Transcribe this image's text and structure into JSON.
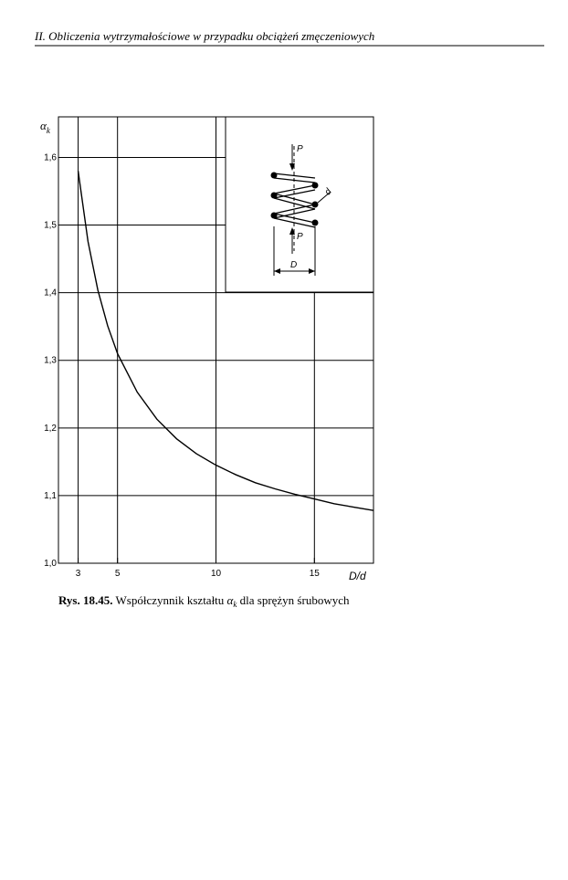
{
  "header": {
    "title": "II. Obliczenia wytrzymałościowe w przypadku obciążeń zmęczeniowych"
  },
  "chart_data": {
    "type": "line",
    "y_label": "α",
    "y_label_sub": "k",
    "x_label": "D/d",
    "x": [
      3,
      3.5,
      4,
      4.5,
      5,
      6,
      7,
      8,
      9,
      10,
      11,
      12,
      13,
      14,
      15,
      16,
      17,
      18
    ],
    "series": [
      {
        "color": "#000000",
        "values": [
          1.58,
          1.476,
          1.404,
          1.351,
          1.31,
          1.253,
          1.213,
          1.184,
          1.162,
          1.145,
          1.131,
          1.119,
          1.11,
          1.102,
          1.095,
          1.088,
          1.083,
          1.078
        ]
      }
    ],
    "xlim": [
      2,
      18
    ],
    "ylim": [
      1.0,
      1.66
    ],
    "xticks": [
      3,
      5,
      10,
      15
    ],
    "yticks": [
      {
        "value": 1.0,
        "label": "1,0"
      },
      {
        "value": 1.1,
        "label": "1,1"
      },
      {
        "value": 1.2,
        "label": "1,2"
      },
      {
        "value": 1.3,
        "label": "1,3"
      },
      {
        "value": 1.4,
        "label": "1,4"
      },
      {
        "value": 1.5,
        "label": "1,5"
      },
      {
        "value": 1.6,
        "label": "1,6"
      }
    ],
    "grid": true
  },
  "inset": {
    "force_top": "P",
    "force_bottom": "P",
    "wire": "d",
    "diameter": "D"
  },
  "caption": {
    "label": "Rys. 18.45.",
    "text": "Współczynnik kształtu",
    "symbol": "α",
    "symbol_sub": "k",
    "text_after": "dla sprężyn śrubowych"
  }
}
